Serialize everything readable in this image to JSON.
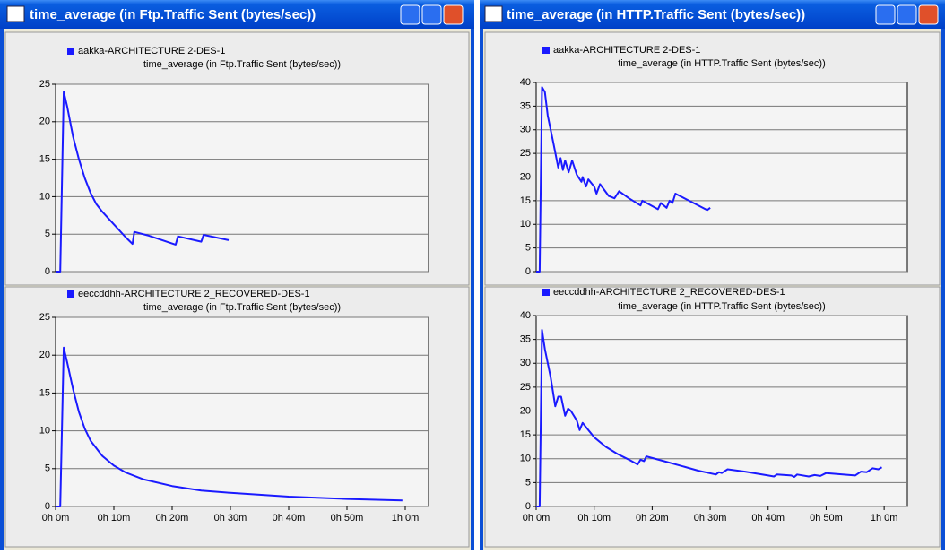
{
  "windows": [
    {
      "title": "time_average (in Ftp.Traffic Sent (bytes/sec))"
    },
    {
      "title": "time_average (in HTTP.Traffic Sent (bytes/sec))"
    }
  ],
  "chart_data": [
    {
      "type": "line",
      "title": "time_average (in Ftp.Traffic Sent (bytes/sec))",
      "series": [
        {
          "name": "aakka-ARCHITECTURE 2-DES-1",
          "color": "#1a1aff",
          "x": [
            0,
            0.8,
            1.4,
            2,
            3,
            4,
            5,
            6,
            7,
            8,
            10,
            12,
            13.2,
            13.5,
            16,
            20.6,
            21,
            25,
            25.4,
            29.7
          ],
          "values": [
            0,
            0,
            24,
            22,
            18,
            15,
            12.5,
            10.5,
            9,
            8,
            6.3,
            4.6,
            3.7,
            5.3,
            4.8,
            3.6,
            4.7,
            4,
            4.9,
            4.2
          ]
        }
      ],
      "xlim": [
        0,
        64
      ],
      "ylim": [
        0,
        25
      ],
      "yticks": [
        0,
        5,
        10,
        15,
        20,
        25
      ],
      "grid": true
    },
    {
      "type": "line",
      "title": "time_average (in Ftp.Traffic Sent (bytes/sec))",
      "series": [
        {
          "name": "eeccddhh-ARCHITECTURE 2_RECOVERED-DES-1",
          "color": "#1a1aff",
          "x": [
            0,
            0.8,
            1.4,
            2,
            3,
            4,
            5,
            6,
            8,
            10,
            12,
            15,
            20,
            25,
            30,
            40,
            50,
            59.5
          ],
          "values": [
            0,
            0,
            21,
            19,
            15.5,
            12.5,
            10.3,
            8.7,
            6.7,
            5.4,
            4.5,
            3.6,
            2.7,
            2.1,
            1.8,
            1.3,
            1.0,
            0.8
          ]
        }
      ],
      "xlim": [
        0,
        64
      ],
      "ylim": [
        0,
        25
      ],
      "yticks": [
        0,
        5,
        10,
        15,
        20,
        25
      ],
      "xticks": [
        {
          "value": 0,
          "label": "0h 0m"
        },
        {
          "value": 10,
          "label": "0h 10m"
        },
        {
          "value": 20,
          "label": "0h 20m"
        },
        {
          "value": 30,
          "label": "0h 30m"
        },
        {
          "value": 40,
          "label": "0h 40m"
        },
        {
          "value": 50,
          "label": "0h 50m"
        },
        {
          "value": 60,
          "label": "1h 0m"
        }
      ],
      "grid": true
    },
    {
      "type": "line",
      "title": "time_average (in HTTP.Traffic Sent (bytes/sec))",
      "series": [
        {
          "name": "aakka-ARCHITECTURE 2-DES-1",
          "color": "#1a1aff",
          "x": [
            0,
            0.6,
            1.0,
            1.5,
            2,
            3,
            3.8,
            4.2,
            4.6,
            5,
            5.6,
            6.2,
            7,
            7.8,
            8,
            8.6,
            9,
            10,
            10.4,
            11,
            12.5,
            13.5,
            14.3,
            16,
            18,
            18.3,
            21,
            21.5,
            22.5,
            23,
            23.5,
            24,
            29.5,
            30
          ],
          "values": [
            0,
            0,
            39,
            38,
            33,
            27,
            22,
            24,
            21.5,
            23.5,
            21,
            23.5,
            20.5,
            19,
            20,
            18,
            19.5,
            18,
            16.5,
            18.5,
            16,
            15.5,
            17,
            15.5,
            14,
            15,
            13.2,
            14.5,
            13.5,
            15,
            14.5,
            16.5,
            13,
            13.5
          ]
        }
      ],
      "xlim": [
        0,
        64
      ],
      "ylim": [
        0,
        40
      ],
      "yticks": [
        0,
        5,
        10,
        15,
        20,
        25,
        30,
        35,
        40
      ],
      "grid": true
    },
    {
      "type": "line",
      "title": "time_average (in HTTP.Traffic Sent (bytes/sec))",
      "series": [
        {
          "name": "eeccddhh-ARCHITECTURE 2_RECOVERED-DES-1",
          "color": "#1a1aff",
          "x": [
            0,
            0.6,
            1,
            1.5,
            2.5,
            3.3,
            3.8,
            4.3,
            5,
            5.5,
            6,
            7,
            7.5,
            8,
            9,
            10,
            12,
            14,
            16,
            17.5,
            18,
            18.6,
            19,
            22,
            25,
            28,
            31,
            31.5,
            32,
            33,
            36,
            40,
            41,
            41.5,
            44,
            44.5,
            45,
            47,
            48,
            49,
            50,
            55,
            56,
            57,
            58,
            59,
            59.6
          ],
          "values": [
            0,
            0,
            37,
            33,
            27,
            21,
            23,
            23,
            19,
            20.5,
            20,
            18,
            16,
            17.5,
            16,
            14.5,
            12.5,
            11,
            9.8,
            8.8,
            9.8,
            9.5,
            10.5,
            9.5,
            8.5,
            7.5,
            6.7,
            7.2,
            7,
            7.8,
            7.3,
            6.5,
            6.3,
            6.7,
            6.5,
            6.2,
            6.7,
            6.3,
            6.6,
            6.4,
            7,
            6.5,
            7.3,
            7.2,
            8,
            7.8,
            8.2
          ]
        }
      ],
      "xlim": [
        0,
        64
      ],
      "ylim": [
        0,
        40
      ],
      "yticks": [
        0,
        5,
        10,
        15,
        20,
        25,
        30,
        35,
        40
      ],
      "xticks": [
        {
          "value": 0,
          "label": "0h 0m"
        },
        {
          "value": 10,
          "label": "0h 10m"
        },
        {
          "value": 20,
          "label": "0h 20m"
        },
        {
          "value": 30,
          "label": "0h 30m"
        },
        {
          "value": 40,
          "label": "0h 40m"
        },
        {
          "value": 50,
          "label": "0h 50m"
        },
        {
          "value": 60,
          "label": "1h 0m"
        }
      ],
      "grid": true
    }
  ]
}
